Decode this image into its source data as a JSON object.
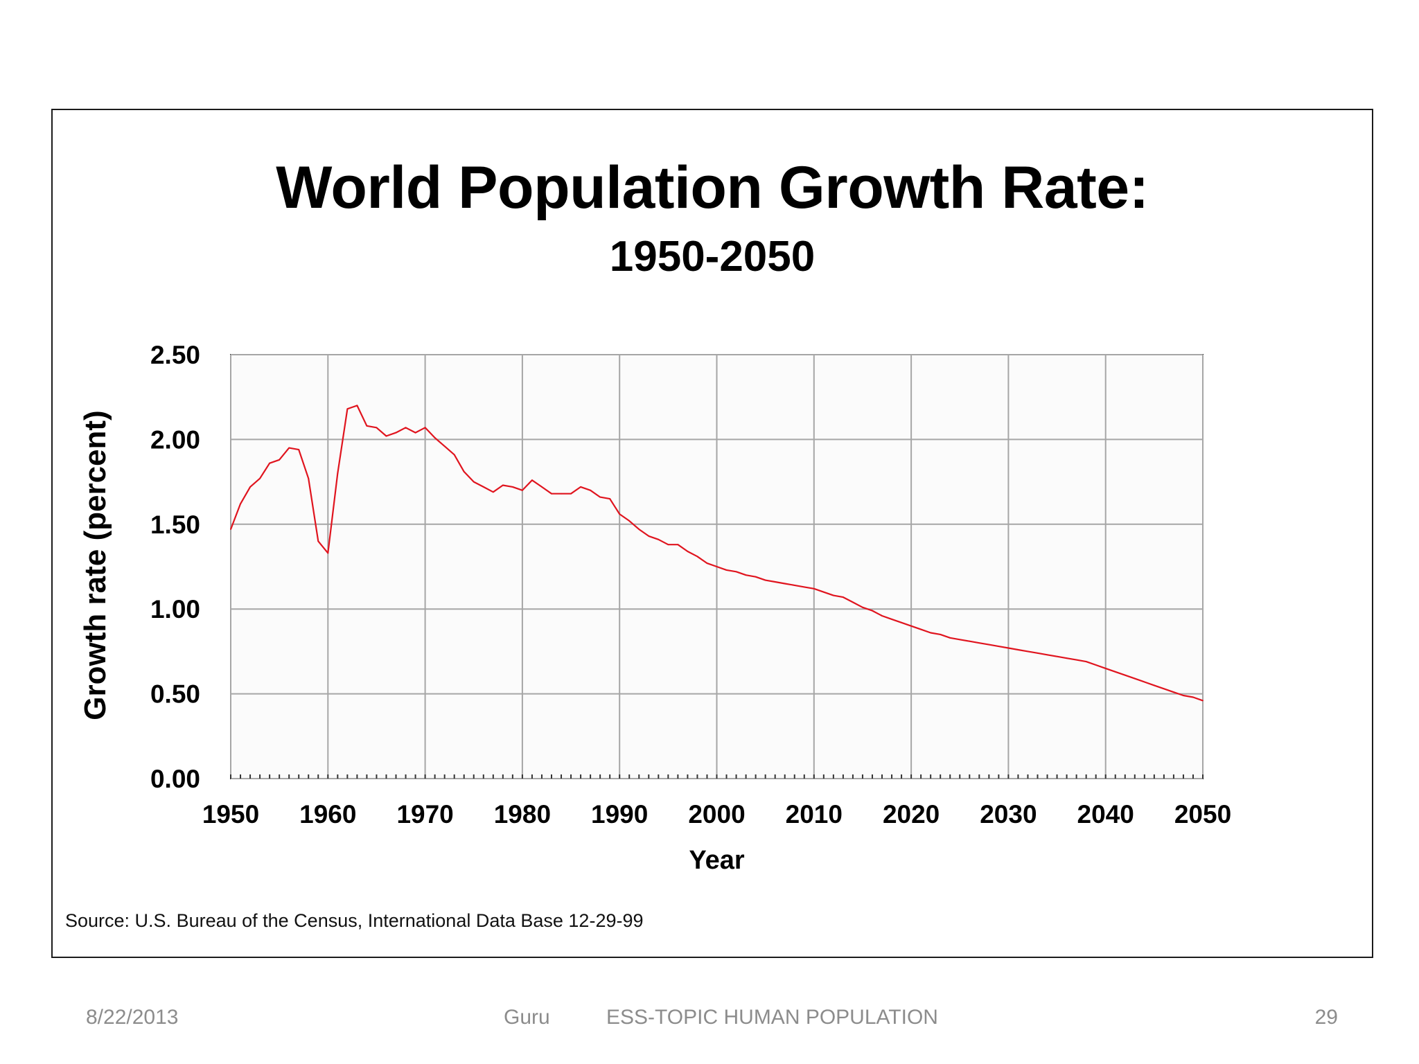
{
  "chart_data": {
    "type": "line",
    "title": "World Population Growth Rate:",
    "subtitle": "1950-2050",
    "xlabel": "Year",
    "ylabel": "Growth rate (percent)",
    "xlim": [
      1950,
      2050
    ],
    "ylim": [
      0,
      2.5
    ],
    "x_ticks": [
      "1950",
      "1960",
      "1970",
      "1980",
      "1990",
      "2000",
      "2010",
      "2020",
      "2030",
      "2040",
      "2050"
    ],
    "y_ticks": [
      "0.00",
      "0.50",
      "1.00",
      "1.50",
      "2.00",
      "2.50"
    ],
    "grid": true,
    "series": [
      {
        "color": "#e0141e",
        "x": [
          1950,
          1951,
          1952,
          1953,
          1954,
          1955,
          1956,
          1957,
          1958,
          1959,
          1960,
          1961,
          1962,
          1963,
          1964,
          1965,
          1966,
          1967,
          1968,
          1969,
          1970,
          1971,
          1972,
          1973,
          1974,
          1975,
          1976,
          1977,
          1978,
          1979,
          1980,
          1981,
          1982,
          1983,
          1984,
          1985,
          1986,
          1987,
          1988,
          1989,
          1990,
          1991,
          1992,
          1993,
          1994,
          1995,
          1996,
          1997,
          1998,
          1999,
          2000,
          2001,
          2002,
          2003,
          2004,
          2005,
          2006,
          2007,
          2008,
          2009,
          2010,
          2011,
          2012,
          2013,
          2014,
          2015,
          2016,
          2017,
          2018,
          2019,
          2020,
          2021,
          2022,
          2023,
          2024,
          2025,
          2026,
          2027,
          2028,
          2029,
          2030,
          2031,
          2032,
          2033,
          2034,
          2035,
          2036,
          2037,
          2038,
          2039,
          2040,
          2041,
          2042,
          2043,
          2044,
          2045,
          2046,
          2047,
          2048,
          2049,
          2050
        ],
        "y": [
          1.47,
          1.62,
          1.72,
          1.77,
          1.86,
          1.88,
          1.95,
          1.94,
          1.77,
          1.4,
          1.33,
          1.8,
          2.18,
          2.2,
          2.08,
          2.07,
          2.02,
          2.04,
          2.07,
          2.04,
          2.07,
          2.01,
          1.96,
          1.91,
          1.81,
          1.75,
          1.72,
          1.69,
          1.73,
          1.72,
          1.7,
          1.76,
          1.72,
          1.68,
          1.68,
          1.68,
          1.72,
          1.7,
          1.66,
          1.65,
          1.56,
          1.52,
          1.47,
          1.43,
          1.41,
          1.38,
          1.38,
          1.34,
          1.31,
          1.27,
          1.25,
          1.23,
          1.22,
          1.2,
          1.19,
          1.17,
          1.16,
          1.15,
          1.14,
          1.13,
          1.12,
          1.1,
          1.08,
          1.07,
          1.04,
          1.01,
          0.99,
          0.96,
          0.94,
          0.92,
          0.9,
          0.88,
          0.86,
          0.85,
          0.83,
          0.82,
          0.81,
          0.8,
          0.79,
          0.78,
          0.77,
          0.76,
          0.75,
          0.74,
          0.73,
          0.72,
          0.71,
          0.7,
          0.69,
          0.67,
          0.65,
          0.63,
          0.61,
          0.59,
          0.57,
          0.55,
          0.53,
          0.51,
          0.49,
          0.48,
          0.46
        ]
      }
    ],
    "source": "Source: U.S. Bureau of the Census, International Data Base 12-29-99"
  },
  "footer": {
    "date": "8/22/2013",
    "author": "Guru",
    "topic": "ESS-TOPIC HUMAN POPULATION",
    "page": "29"
  },
  "colors": {
    "line": "#e0141e",
    "grid": "#a6a6a6",
    "plot_bg": "#fbfbfb",
    "footer_text": "#8c8c8c"
  }
}
